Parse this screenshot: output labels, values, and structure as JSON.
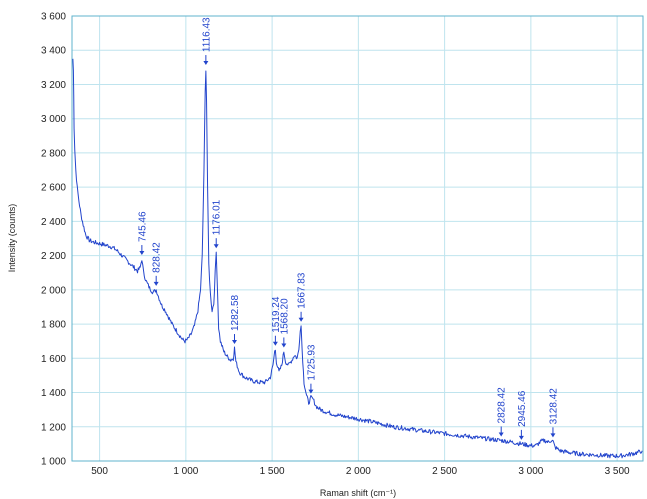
{
  "chart_data": {
    "type": "line",
    "xlabel": "Raman shift (cm⁻¹)",
    "ylabel": "Intensity (counts)",
    "xlim": [
      340,
      3650
    ],
    "ylim": [
      1000,
      3600
    ],
    "grid": true,
    "colors": {
      "line": "#2244cc",
      "grid": "#bfe4ee",
      "frame": "#5fb3cc",
      "text": "#222222"
    },
    "x_ticks": [
      {
        "value": 500,
        "label": "500"
      },
      {
        "value": 1000,
        "label": "1 000"
      },
      {
        "value": 1500,
        "label": "1 500"
      },
      {
        "value": 2000,
        "label": "2 000"
      },
      {
        "value": 2500,
        "label": "2 500"
      },
      {
        "value": 3000,
        "label": "3 000"
      },
      {
        "value": 3500,
        "label": "3 500"
      }
    ],
    "y_ticks": [
      {
        "value": 1000,
        "label": "1 000"
      },
      {
        "value": 1200,
        "label": "1 200"
      },
      {
        "value": 1400,
        "label": "1 400"
      },
      {
        "value": 1600,
        "label": "1 600"
      },
      {
        "value": 1800,
        "label": "1 800"
      },
      {
        "value": 2000,
        "label": "2 000"
      },
      {
        "value": 2200,
        "label": "2 200"
      },
      {
        "value": 2400,
        "label": "2 400"
      },
      {
        "value": 2600,
        "label": "2 600"
      },
      {
        "value": 2800,
        "label": "2 800"
      },
      {
        "value": 3000,
        "label": "3 000"
      },
      {
        "value": 3200,
        "label": "3 200"
      },
      {
        "value": 3400,
        "label": "3 400"
      },
      {
        "value": 3600,
        "label": "3 600"
      }
    ],
    "series": [
      {
        "points": [
          [
            345,
            3350
          ],
          [
            348,
            3280
          ],
          [
            350,
            3150
          ],
          [
            352,
            2950
          ],
          [
            356,
            2820
          ],
          [
            362,
            2700
          ],
          [
            370,
            2600
          ],
          [
            380,
            2520
          ],
          [
            392,
            2440
          ],
          [
            405,
            2380
          ],
          [
            420,
            2320
          ],
          [
            440,
            2290
          ],
          [
            460,
            2280
          ],
          [
            480,
            2275
          ],
          [
            500,
            2270
          ],
          [
            520,
            2265
          ],
          [
            540,
            2260
          ],
          [
            560,
            2255
          ],
          [
            580,
            2245
          ],
          [
            600,
            2230
          ],
          [
            620,
            2210
          ],
          [
            640,
            2190
          ],
          [
            660,
            2170
          ],
          [
            680,
            2150
          ],
          [
            700,
            2130
          ],
          [
            720,
            2110
          ],
          [
            735,
            2130
          ],
          [
            745,
            2180
          ],
          [
            755,
            2100
          ],
          [
            770,
            2050
          ],
          [
            790,
            2010
          ],
          [
            810,
            1985
          ],
          [
            828,
            2000
          ],
          [
            845,
            1950
          ],
          [
            860,
            1910
          ],
          [
            880,
            1880
          ],
          [
            900,
            1840
          ],
          [
            920,
            1800
          ],
          [
            940,
            1770
          ],
          [
            960,
            1740
          ],
          [
            980,
            1710
          ],
          [
            995,
            1700
          ],
          [
            1010,
            1710
          ],
          [
            1030,
            1740
          ],
          [
            1050,
            1790
          ],
          [
            1070,
            1880
          ],
          [
            1085,
            2000
          ],
          [
            1095,
            2200
          ],
          [
            1105,
            2700
          ],
          [
            1112,
            3150
          ],
          [
            1116,
            3290
          ],
          [
            1120,
            3100
          ],
          [
            1126,
            2600
          ],
          [
            1133,
            2150
          ],
          [
            1142,
            1980
          ],
          [
            1152,
            1880
          ],
          [
            1162,
            1920
          ],
          [
            1170,
            2100
          ],
          [
            1176,
            2220
          ],
          [
            1182,
            2050
          ],
          [
            1190,
            1780
          ],
          [
            1200,
            1700
          ],
          [
            1220,
            1640
          ],
          [
            1240,
            1610
          ],
          [
            1260,
            1590
          ],
          [
            1275,
            1600
          ],
          [
            1282,
            1660
          ],
          [
            1290,
            1580
          ],
          [
            1310,
            1520
          ],
          [
            1340,
            1490
          ],
          [
            1380,
            1470
          ],
          [
            1420,
            1460
          ],
          [
            1460,
            1460
          ],
          [
            1490,
            1490
          ],
          [
            1505,
            1560
          ],
          [
            1515,
            1640
          ],
          [
            1519,
            1650
          ],
          [
            1525,
            1580
          ],
          [
            1540,
            1520
          ],
          [
            1556,
            1560
          ],
          [
            1568,
            1640
          ],
          [
            1578,
            1580
          ],
          [
            1595,
            1560
          ],
          [
            1615,
            1590
          ],
          [
            1630,
            1620
          ],
          [
            1645,
            1600
          ],
          [
            1655,
            1650
          ],
          [
            1663,
            1770
          ],
          [
            1668,
            1790
          ],
          [
            1674,
            1650
          ],
          [
            1685,
            1460
          ],
          [
            1700,
            1380
          ],
          [
            1712,
            1340
          ],
          [
            1725,
            1370
          ],
          [
            1738,
            1360
          ],
          [
            1755,
            1320
          ],
          [
            1780,
            1300
          ],
          [
            1820,
            1285
          ],
          [
            1870,
            1270
          ],
          [
            1920,
            1260
          ],
          [
            1980,
            1250
          ],
          [
            2050,
            1235
          ],
          [
            2120,
            1220
          ],
          [
            2200,
            1200
          ],
          [
            2280,
            1190
          ],
          [
            2360,
            1178
          ],
          [
            2440,
            1168
          ],
          [
            2520,
            1158
          ],
          [
            2600,
            1148
          ],
          [
            2680,
            1138
          ],
          [
            2760,
            1128
          ],
          [
            2828,
            1120
          ],
          [
            2880,
            1112
          ],
          [
            2945,
            1100
          ],
          [
            3000,
            1090
          ],
          [
            3030,
            1090
          ],
          [
            3060,
            1115
          ],
          [
            3080,
            1120
          ],
          [
            3100,
            1110
          ],
          [
            3115,
            1120
          ],
          [
            3128,
            1115
          ],
          [
            3140,
            1080
          ],
          [
            3170,
            1060
          ],
          [
            3220,
            1050
          ],
          [
            3300,
            1040
          ],
          [
            3380,
            1035
          ],
          [
            3450,
            1030
          ],
          [
            3520,
            1030
          ],
          [
            3580,
            1040
          ],
          [
            3620,
            1050
          ],
          [
            3645,
            1060
          ]
        ]
      }
    ],
    "annotations": [
      {
        "label": "745.46",
        "x": 745,
        "y": 2180
      },
      {
        "label": "828.42",
        "x": 828,
        "y": 2000
      },
      {
        "label": "1116.43",
        "x": 1116,
        "y": 3290
      },
      {
        "label": "1176.01",
        "x": 1176,
        "y": 2220
      },
      {
        "label": "1282.58",
        "x": 1282,
        "y": 1660
      },
      {
        "label": "1519.24",
        "x": 1519,
        "y": 1650
      },
      {
        "label": "1568.20",
        "x": 1568,
        "y": 1640
      },
      {
        "label": "1667.83",
        "x": 1668,
        "y": 1790
      },
      {
        "label": "1725.93",
        "x": 1725,
        "y": 1370
      },
      {
        "label": "2828.42",
        "x": 2828,
        "y": 1120
      },
      {
        "label": "2945.46",
        "x": 2945,
        "y": 1100
      },
      {
        "label": "3128.42",
        "x": 3128,
        "y": 1115
      }
    ]
  }
}
